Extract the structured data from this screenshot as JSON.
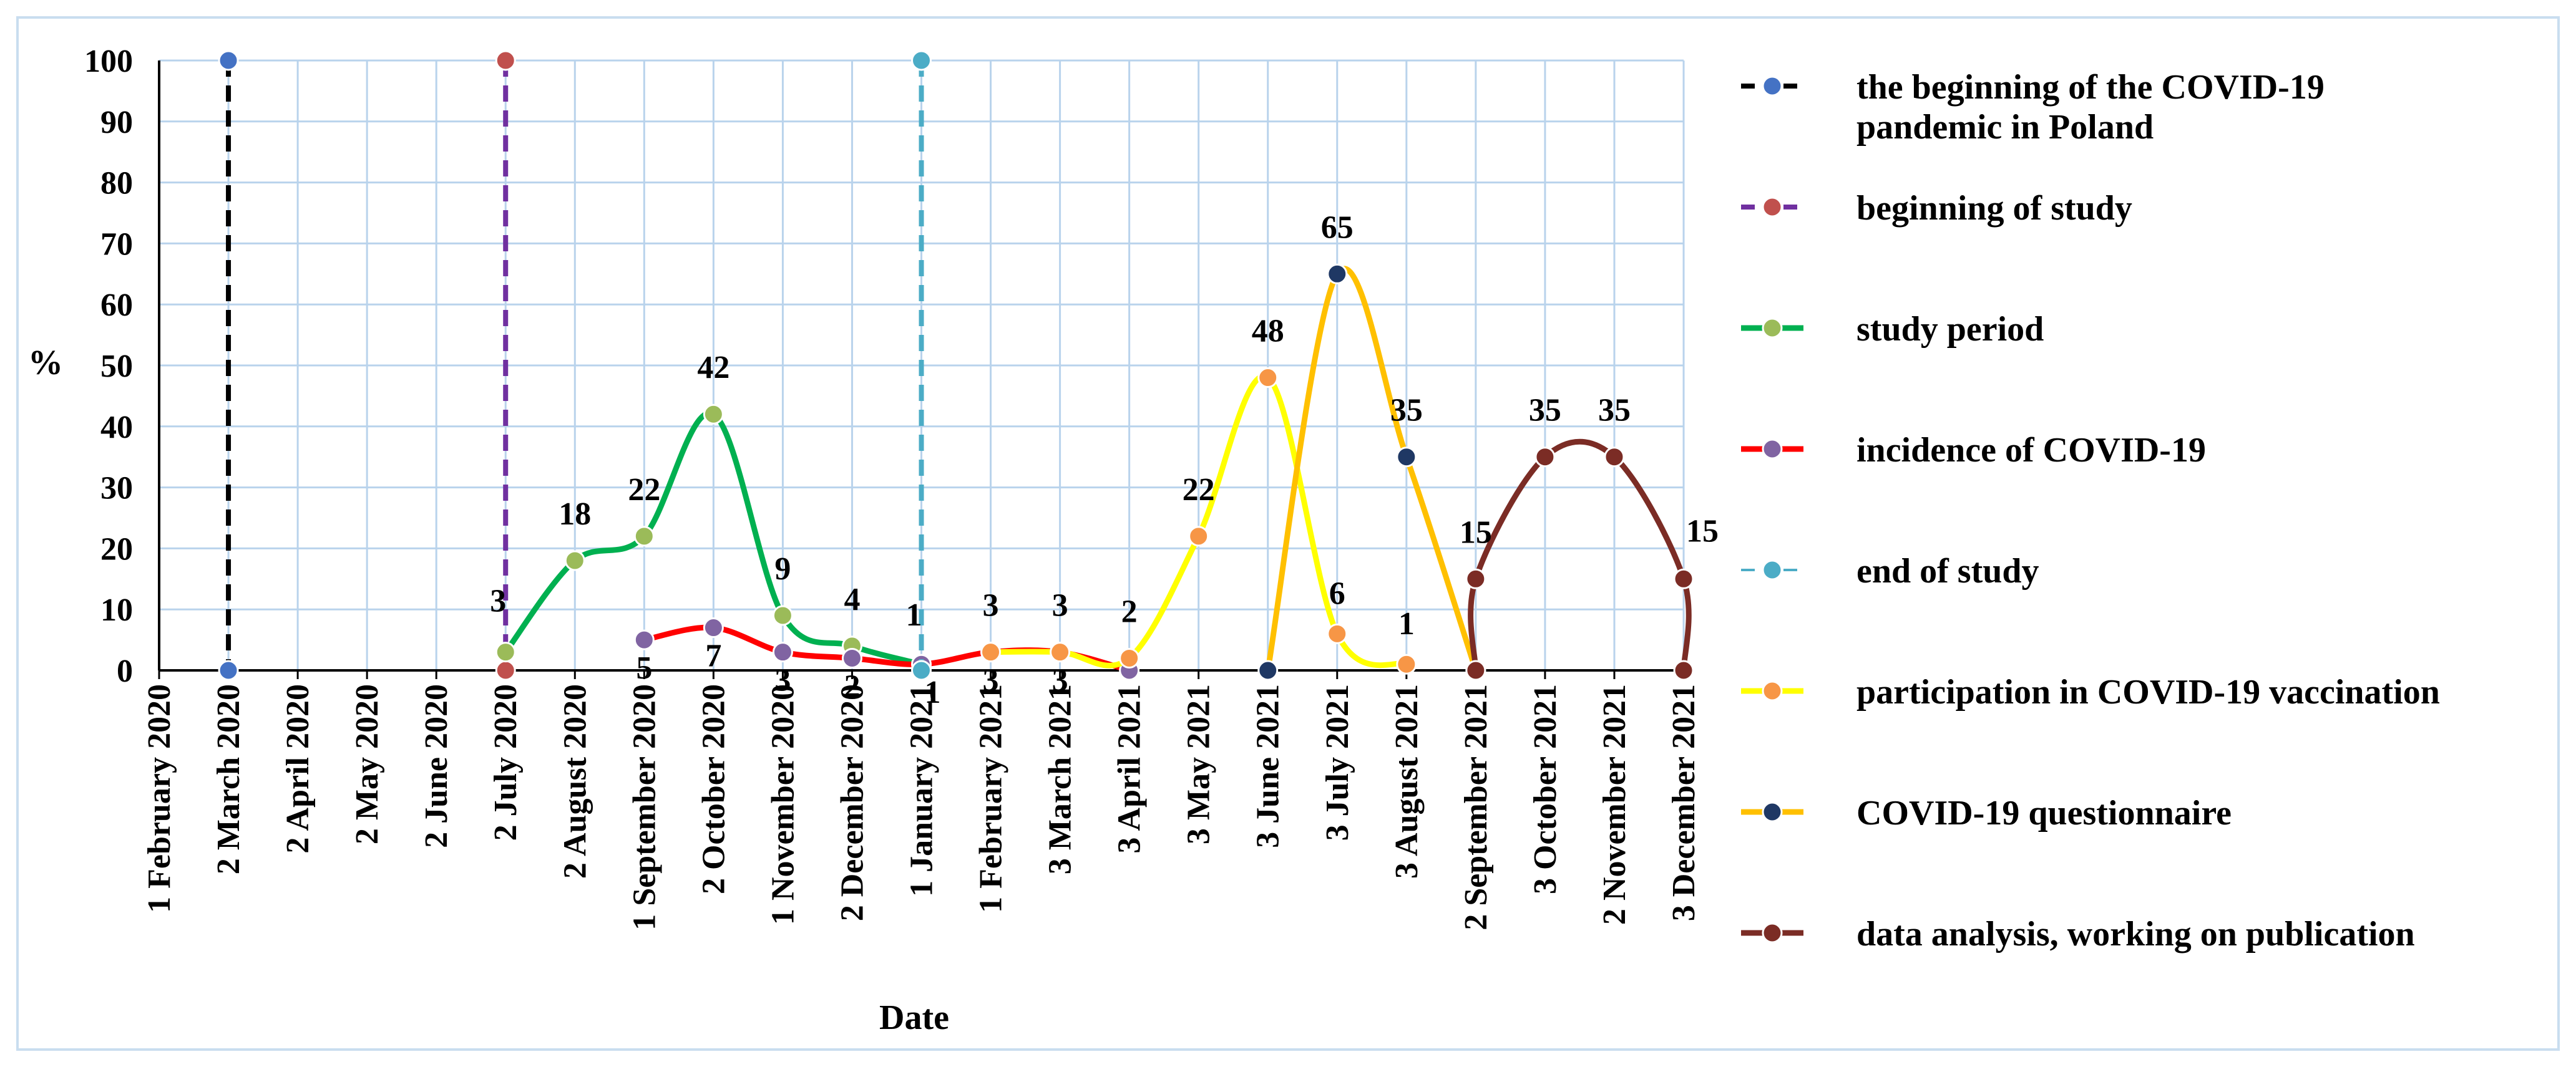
{
  "chart_data": {
    "type": "line",
    "xlabel": "Date",
    "ylabel": "%",
    "ylim": [
      0,
      100
    ],
    "yticks": [
      0,
      10,
      20,
      30,
      40,
      50,
      60,
      70,
      80,
      90,
      100
    ],
    "grid": true,
    "legend_position": "right",
    "categories": [
      "1 February 2020",
      "2 March 2020",
      "2 April 2020",
      "2 May 2020",
      "2 June 2020",
      "2 July 2020",
      "2 August 2020",
      "1 September 2020",
      "2 October 2020",
      "1 November 2020",
      "2 December 2020",
      "1 January 2021",
      "1 February 2021",
      "3 March 2021",
      "3 April 2021",
      "3 May 2021",
      "3 June 2021",
      "3 July 2021",
      "3 August 2021",
      "2 September 2021",
      "3 October 2021",
      "2 November 2021",
      "3 December 2021"
    ],
    "series": [
      {
        "name": "the beginning of the COVID-19 pandemic in Poland",
        "color": "#000000",
        "marker": "#4472c4",
        "style": "dashed",
        "points": [
          {
            "x": "2 March 2020",
            "y": 100
          },
          {
            "x": "2 March 2020",
            "y": 0
          }
        ]
      },
      {
        "name": "beginning of study",
        "color": "#7030a0",
        "marker": "#c0504d",
        "style": "dashed",
        "points": [
          {
            "x": "2 July 2020",
            "y": 100
          },
          {
            "x": "2 July 2020",
            "y": 0
          }
        ]
      },
      {
        "name": "study period",
        "color": "#00b050",
        "marker": "#9bbb59",
        "style": "smooth",
        "points": [
          {
            "x": "2 July 2020",
            "y": 3
          },
          {
            "x": "2 August 2020",
            "y": 18
          },
          {
            "x": "1 September 2020",
            "y": 22
          },
          {
            "x": "2 October 2020",
            "y": 42
          },
          {
            "x": "1 November 2020",
            "y": 9
          },
          {
            "x": "2 December 2020",
            "y": 4
          },
          {
            "x": "1 January 2021",
            "y": 1
          }
        ],
        "labels": [
          "3",
          "18",
          "22",
          "42",
          "9",
          "4",
          "1"
        ]
      },
      {
        "name": "incidence of COVID-19",
        "color": "#ff0000",
        "marker": "#8064a2",
        "style": "smooth",
        "points": [
          {
            "x": "1 September 2020",
            "y": 5
          },
          {
            "x": "2 October 2020",
            "y": 7
          },
          {
            "x": "1 November 2020",
            "y": 3
          },
          {
            "x": "2 December 2020",
            "y": 2
          },
          {
            "x": "1 January 2021",
            "y": 1
          },
          {
            "x": "1 February 2021",
            "y": 3
          },
          {
            "x": "3 March 2021",
            "y": 3
          },
          {
            "x": "3 April 2021",
            "y": 0
          }
        ],
        "labels": [
          "5",
          "7",
          "3",
          "2",
          "1",
          "3",
          "3",
          ""
        ]
      },
      {
        "name": "end of study",
        "color": "#4bacc6",
        "marker": "#4bacc6",
        "style": "dashed",
        "points": [
          {
            "x": "1 January 2021",
            "y": 100
          },
          {
            "x": "1 January 2021",
            "y": 0
          }
        ]
      },
      {
        "name": "participation in COVID-19 vaccination",
        "color": "#ffff00",
        "marker": "#f79646",
        "style": "smooth",
        "points": [
          {
            "x": "1 February 2021",
            "y": 3
          },
          {
            "x": "3 March 2021",
            "y": 3
          },
          {
            "x": "3 April 2021",
            "y": 2
          },
          {
            "x": "3 May 2021",
            "y": 22
          },
          {
            "x": "3 June 2021",
            "y": 48
          },
          {
            "x": "3 July 2021",
            "y": 6
          },
          {
            "x": "3 August 2021",
            "y": 1
          }
        ],
        "labels": [
          "3",
          "3",
          "2",
          "22",
          "48",
          "6",
          "1"
        ]
      },
      {
        "name": "COVID-19 questionnaire",
        "color": "#ffc000",
        "marker": "#1f3864",
        "style": "smooth",
        "points": [
          {
            "x": "3 June 2021",
            "y": 0
          },
          {
            "x": "3 July 2021",
            "y": 65
          },
          {
            "x": "3 August 2021",
            "y": 35
          },
          {
            "x": "2 September 2021",
            "y": 0
          }
        ],
        "labels": [
          "",
          "65",
          "35",
          ""
        ]
      },
      {
        "name": "data analysis, working on publication",
        "color": "#7b2c25",
        "marker": "#7b2c25",
        "style": "smooth",
        "points": [
          {
            "x": "2 September 2021",
            "y": 0
          },
          {
            "x": "2 September 2021",
            "y": 15
          },
          {
            "x": "3 October 2021",
            "y": 35
          },
          {
            "x": "2 November 2021",
            "y": 35
          },
          {
            "x": "3 December 2021",
            "y": 15
          },
          {
            "x": "3 December 2021",
            "y": 0
          }
        ],
        "labels": [
          "",
          "15",
          "35",
          "35",
          "15",
          ""
        ]
      }
    ]
  }
}
